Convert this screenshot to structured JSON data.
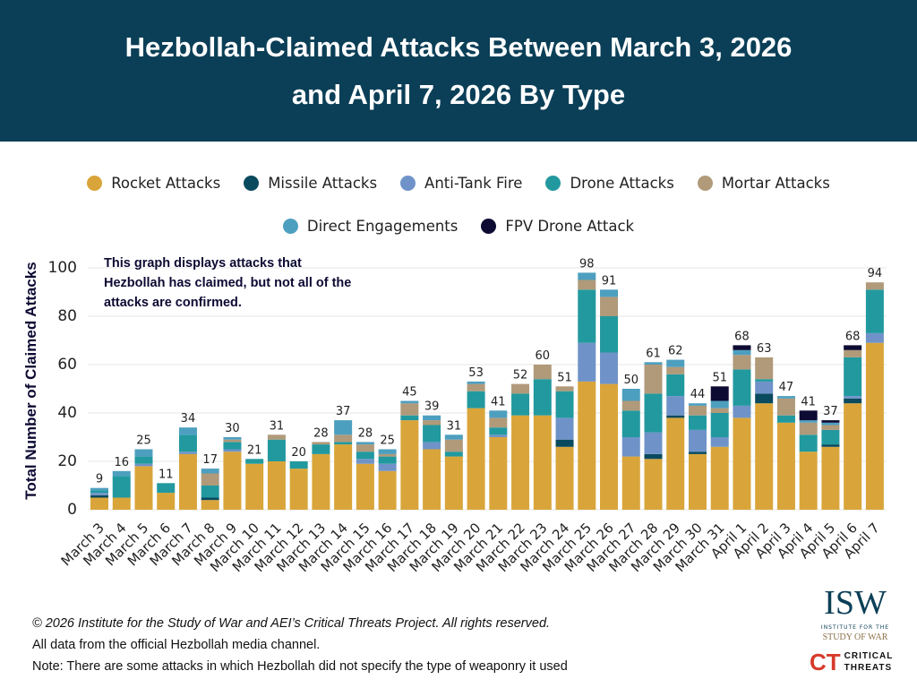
{
  "header": {
    "title_line1": "Hezbollah-Claimed Attacks Between March 3, 2026",
    "title_line2": "and April 7, 2026 By Type"
  },
  "note": "This graph displays attacks that Hezbollah has claimed, but not all of the attacks are confirmed.",
  "footer": {
    "copyright": "© 2026 Institute for the Study of War and AEI’s Critical Threats Project. All rights reserved.",
    "source": "All data from the official Hezbollah media channel.",
    "note": "Note: There are some attacks in which Hezbollah did not specify the type of weaponry it used"
  },
  "logos": {
    "isw": "ISW",
    "isw_sub1": "INSTITUTE FOR THE",
    "isw_sub2": "STUDY OF WAR",
    "ct1": "CRITICAL",
    "ct2": "THREATS"
  },
  "chart_data": {
    "type": "bar",
    "stacked": true,
    "title": "Hezbollah-Claimed Attacks Between March 3, 2026 and April 7, 2026 By Type",
    "xlabel": "",
    "ylabel": "Total Number of Claimed Attacks",
    "ylim": [
      0,
      100
    ],
    "yticks": [
      0,
      20,
      40,
      60,
      80,
      100
    ],
    "grid": true,
    "legend_placement": "top",
    "categories": [
      "March 3",
      "March 4",
      "March 5",
      "March 6",
      "March 7",
      "March 8",
      "March 9",
      "March 10",
      "March 11",
      "March 12",
      "March 13",
      "March 14",
      "March 15",
      "March 16",
      "March 17",
      "March 18",
      "March 19",
      "March 20",
      "March 21",
      "March 22",
      "March 23",
      "March 24",
      "March 25",
      "March 26",
      "March 27",
      "March 28",
      "March 29",
      "March 30",
      "March 31",
      "April 1",
      "April 2",
      "April 3",
      "April 4",
      "April 5",
      "April 6",
      "April 7"
    ],
    "totals": [
      9,
      16,
      25,
      11,
      34,
      17,
      30,
      21,
      31,
      20,
      28,
      37,
      28,
      25,
      45,
      39,
      31,
      53,
      41,
      52,
      60,
      51,
      98,
      91,
      50,
      61,
      62,
      44,
      51,
      68,
      63,
      47,
      41,
      37,
      68,
      94
    ],
    "series": [
      {
        "name": "Rocket Attacks",
        "color": "#D9A53A",
        "values": [
          5,
          5,
          18,
          7,
          23,
          4,
          24,
          19,
          20,
          17,
          23,
          27,
          19,
          16,
          37,
          25,
          22,
          42,
          30,
          39,
          39,
          26,
          53,
          52,
          22,
          21,
          38,
          23,
          26,
          38,
          44,
          36,
          24,
          26,
          44,
          69
        ]
      },
      {
        "name": "Missile Attacks",
        "color": "#0A4A5E",
        "values": [
          1,
          0,
          0,
          0,
          0,
          1,
          0,
          0,
          0,
          0,
          0,
          0,
          0,
          0,
          0,
          0,
          0,
          0,
          0,
          0,
          0,
          3,
          0,
          0,
          0,
          2,
          1,
          1,
          0,
          0,
          4,
          0,
          0,
          1,
          2,
          0
        ]
      },
      {
        "name": "Anti-Tank Fire",
        "color": "#6F93C8",
        "values": [
          1,
          0,
          1,
          0,
          1,
          0,
          1,
          0,
          0,
          0,
          0,
          0,
          2,
          3,
          0,
          3,
          0,
          0,
          1,
          0,
          0,
          9,
          16,
          13,
          8,
          9,
          8,
          9,
          4,
          5,
          5,
          0,
          0,
          0,
          1,
          4
        ]
      },
      {
        "name": "Drone Attacks",
        "color": "#22999F",
        "values": [
          1,
          9,
          3,
          4,
          7,
          5,
          3,
          2,
          9,
          3,
          4,
          1,
          3,
          3,
          2,
          7,
          2,
          7,
          3,
          9,
          15,
          11,
          22,
          15,
          11,
          16,
          9,
          6,
          10,
          15,
          1,
          3,
          7,
          6,
          16,
          18
        ]
      },
      {
        "name": "Mortar Attacks",
        "color": "#B09A7A",
        "values": [
          0,
          0,
          0,
          0,
          0,
          5,
          1,
          0,
          2,
          0,
          1,
          3,
          3,
          1,
          5,
          2,
          5,
          3,
          4,
          4,
          6,
          2,
          4,
          8,
          4,
          12,
          3,
          4,
          2,
          6,
          9,
          7,
          5,
          2,
          3,
          3
        ]
      },
      {
        "name": "Direct Engagements",
        "color": "#4D9FBF",
        "values": [
          1,
          2,
          3,
          0,
          3,
          2,
          1,
          0,
          0,
          0,
          0,
          6,
          1,
          2,
          1,
          2,
          2,
          1,
          3,
          0,
          0,
          0,
          3,
          3,
          5,
          1,
          3,
          1,
          3,
          2,
          0,
          1,
          1,
          1,
          0,
          0
        ]
      },
      {
        "name": "FPV Drone Attack",
        "color": "#0D0A33",
        "values": [
          0,
          0,
          0,
          0,
          0,
          0,
          0,
          0,
          0,
          0,
          0,
          0,
          0,
          0,
          0,
          0,
          0,
          0,
          0,
          0,
          0,
          0,
          0,
          0,
          0,
          0,
          0,
          0,
          6,
          2,
          0,
          0,
          4,
          1,
          2,
          0
        ]
      }
    ]
  }
}
